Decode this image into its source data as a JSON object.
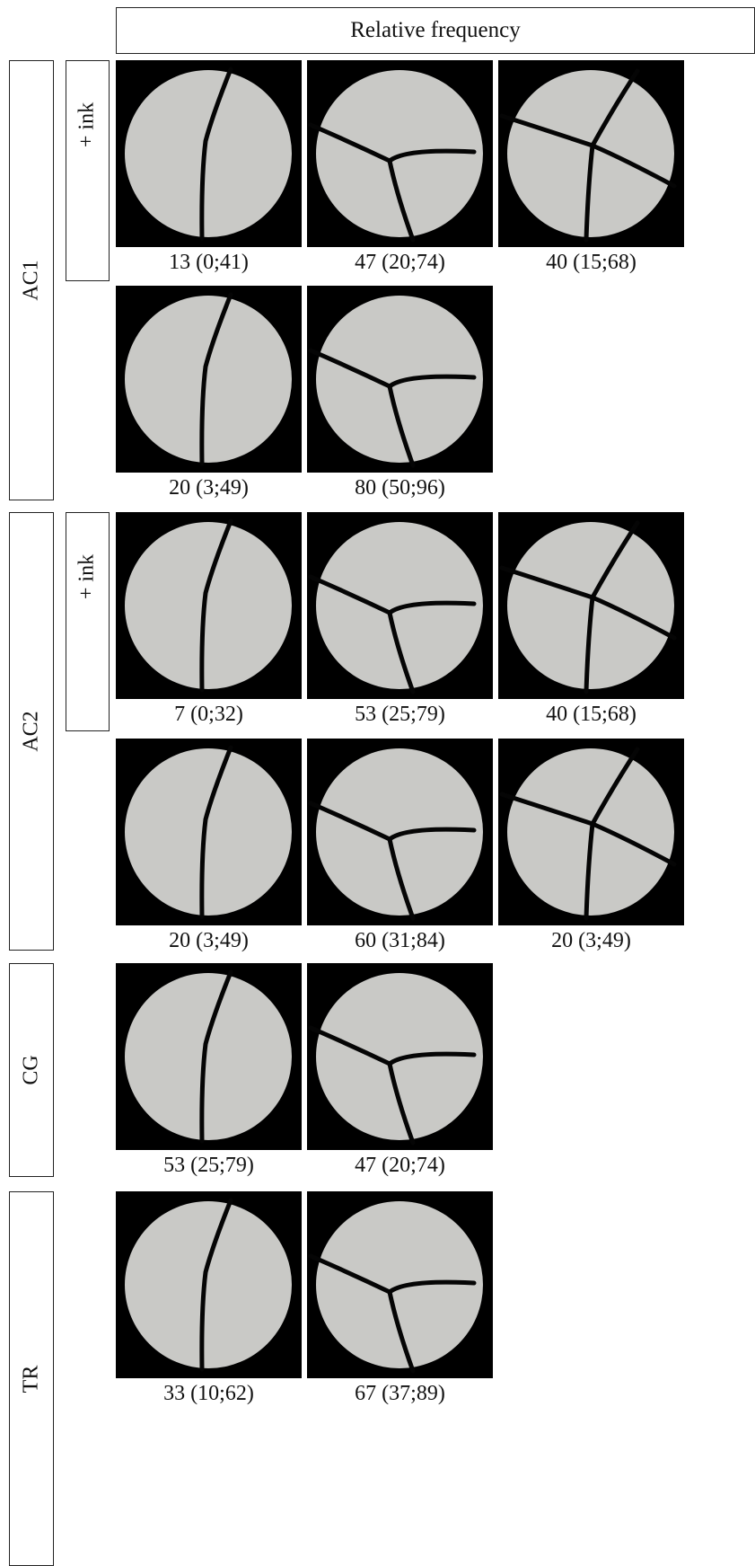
{
  "header": {
    "title": "Relative frequency"
  },
  "groups": [
    {
      "label": "AC1",
      "subrows": [
        {
          "label": "+ ink",
          "captions": [
            "13 (0;41)",
            "47 (20;74)",
            "40 (15;68)"
          ]
        },
        {
          "label": "",
          "captions": [
            "20 (3;49)",
            "80 (50;96)"
          ]
        }
      ]
    },
    {
      "label": "AC2",
      "subrows": [
        {
          "label": "+ ink",
          "captions": [
            "7 (0;32)",
            "53 (25;79)",
            "40 (15;68)"
          ]
        },
        {
          "label": "",
          "captions": [
            "20 (3;49)",
            "60 (31;84)",
            "20 (3;49)"
          ]
        }
      ]
    },
    {
      "label": "CG",
      "subrows": [
        {
          "label": "",
          "captions": [
            "53 (25;79)",
            "47 (20;74)"
          ]
        }
      ]
    },
    {
      "label": "TR",
      "subrows": [
        {
          "label": "",
          "captions": [
            "33 (10;62)",
            "67 (37;89)"
          ]
        }
      ]
    }
  ],
  "colors": {
    "disc": "#c9c9c6",
    "background": "#000000",
    "frame": "#222222"
  },
  "fracture_types": [
    "two-fragment-fracture",
    "three-fragment-fracture",
    "four-fragment-fracture"
  ]
}
